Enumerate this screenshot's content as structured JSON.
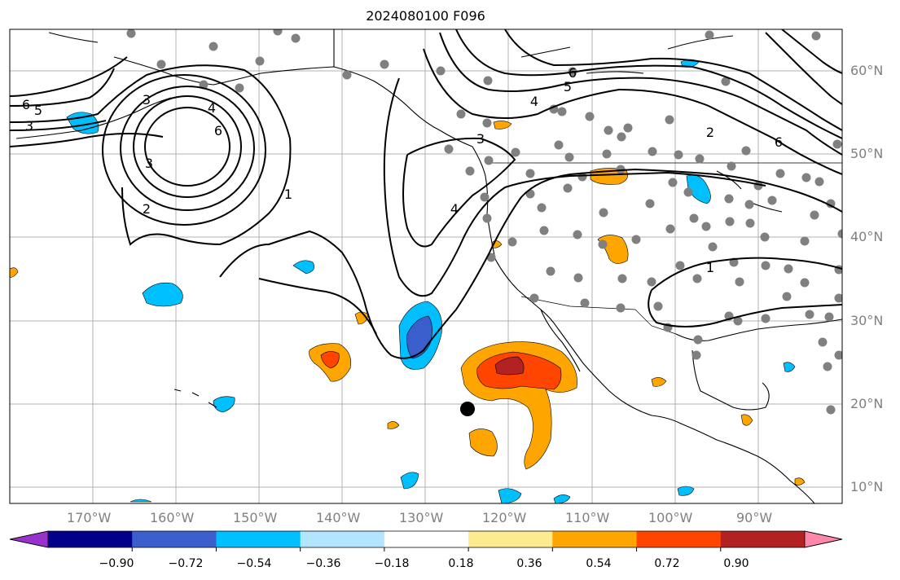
{
  "title": "2024080100 F096",
  "colors": {
    "blue_strong": "#3a5fcd",
    "blue": "#00bfff",
    "blue_light": "#b2e5ff",
    "yellow": "#fcec8f",
    "orange": "#ffa500",
    "red_orange": "#ff4500",
    "dark_red": "#b22222",
    "station_dot": "#808080",
    "contour": "#000000"
  },
  "lon_labels": [
    "170°W",
    "160°W",
    "150°W",
    "140°W",
    "130°W",
    "120°W",
    "110°W",
    "100°W",
    "90°W"
  ],
  "lat_labels": [
    "60°N",
    "50°N",
    "40°N",
    "30°N",
    "20°N",
    "10°N"
  ],
  "contour_labels": [
    "6",
    "5",
    "3",
    "3",
    "4",
    "6",
    "3",
    "2",
    "1",
    "6",
    "5",
    "4",
    "3",
    "4",
    "2",
    "6",
    "1"
  ],
  "colorbar": {
    "ticks": [
      "−0.90",
      "−0.72",
      "−0.54",
      "−0.36",
      "−0.18",
      "0.18",
      "0.36",
      "0.54",
      "0.72",
      "0.90"
    ],
    "colors": [
      "#9932cc",
      "#00008b",
      "#3a5fcd",
      "#00bfff",
      "#b2e5ff",
      "#ffffff",
      "#fcec8f",
      "#ffa500",
      "#ff4500",
      "#b22222",
      "#ff88aa"
    ]
  }
}
